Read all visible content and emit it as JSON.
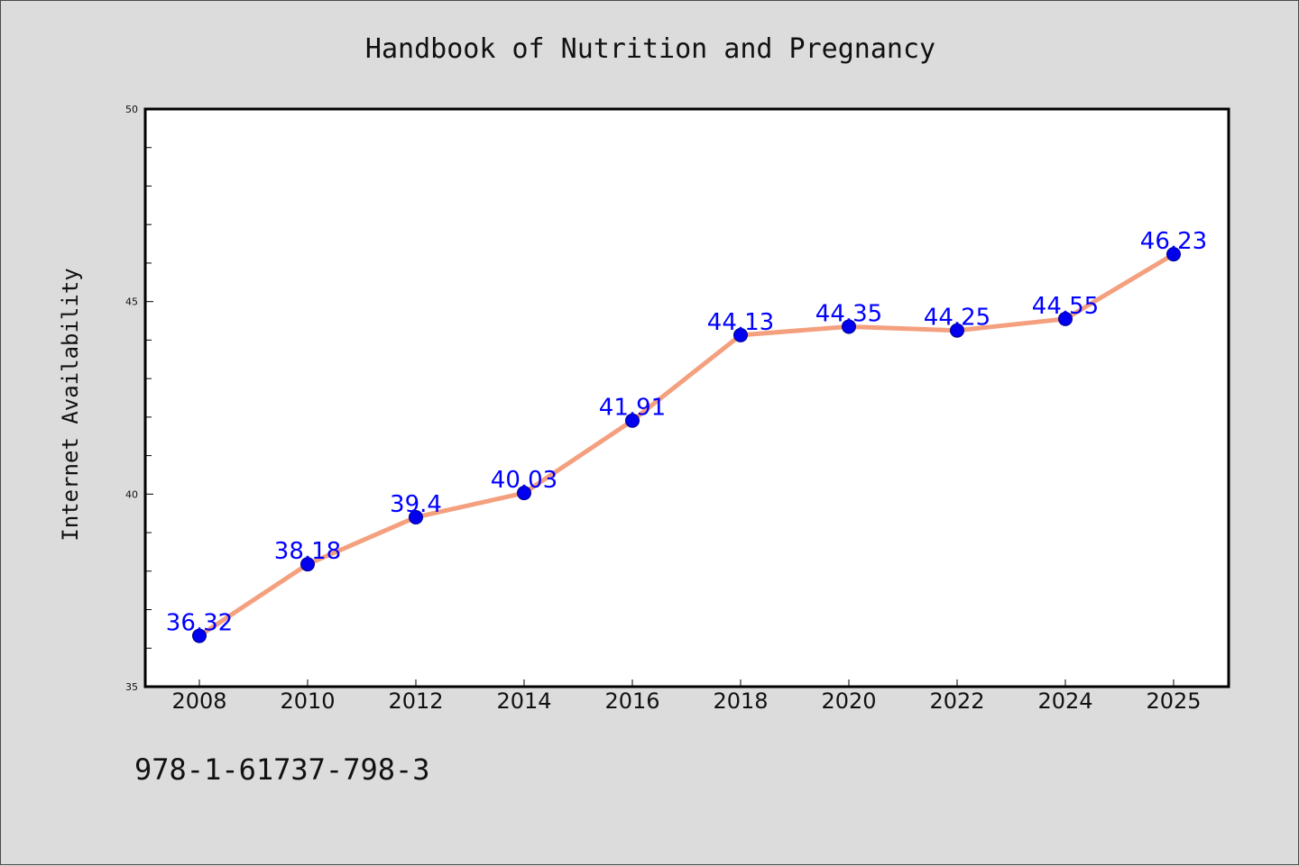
{
  "chart_data": {
    "type": "line",
    "title": "Handbook of Nutrition and Pregnancy",
    "xlabel": "",
    "ylabel": "Internet Availability",
    "categories": [
      "2008",
      "2010",
      "2012",
      "2014",
      "2016",
      "2018",
      "2020",
      "2022",
      "2024",
      "2025"
    ],
    "values": [
      36.32,
      38.18,
      39.4,
      40.03,
      41.91,
      44.13,
      44.35,
      44.25,
      44.55,
      46.23
    ],
    "data_labels": [
      "36.32",
      "38.18",
      "39.4",
      "40.03",
      "41.91",
      "44.13",
      "44.35",
      "44.25",
      "44.55",
      "46.23"
    ],
    "ylim": [
      35,
      50
    ],
    "yticks": [
      35,
      40,
      45,
      50
    ],
    "grid": false,
    "legend": "none",
    "colors": {
      "line": "#f4a07e",
      "marker": "#0000ee",
      "label": "#0000ff",
      "plot_bg": "#ffffff",
      "page_bg": "#dcdcdc"
    }
  },
  "footer": {
    "isbn": "978-1-61737-798-3"
  }
}
